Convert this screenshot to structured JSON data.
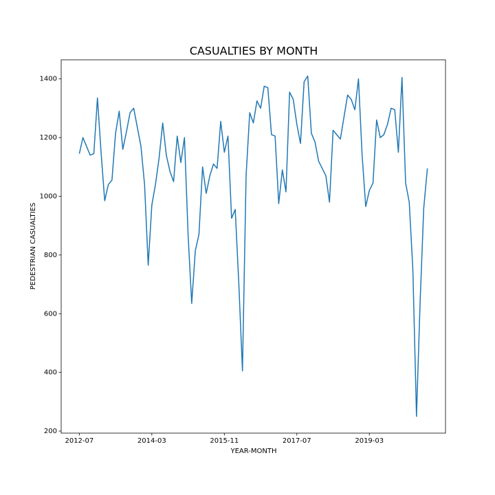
{
  "chart_data": {
    "type": "line",
    "title": "CASUALTIES BY MONTH",
    "x_label": "YEAR-MONTH",
    "y_label": "PEDESTRIAN CASUALTIES",
    "x": [
      "2012-07",
      "2012-08",
      "2012-09",
      "2012-10",
      "2012-11",
      "2012-12",
      "2013-01",
      "2013-02",
      "2013-03",
      "2013-04",
      "2013-05",
      "2013-06",
      "2013-07",
      "2013-08",
      "2013-09",
      "2013-10",
      "2013-11",
      "2013-12",
      "2014-01",
      "2014-02",
      "2014-03",
      "2014-04",
      "2014-05",
      "2014-06",
      "2014-07",
      "2014-08",
      "2014-09",
      "2014-10",
      "2014-11",
      "2014-12",
      "2015-01",
      "2015-02",
      "2015-03",
      "2015-04",
      "2015-05",
      "2015-06",
      "2015-07",
      "2015-08",
      "2015-09",
      "2015-10",
      "2015-11",
      "2015-12",
      "2016-01",
      "2016-02",
      "2016-03",
      "2016-04",
      "2016-05",
      "2016-06",
      "2016-07",
      "2016-08",
      "2016-09",
      "2016-10",
      "2016-11",
      "2016-12",
      "2017-01",
      "2017-02",
      "2017-03",
      "2017-04",
      "2017-05",
      "2017-06",
      "2017-07",
      "2017-08",
      "2017-09",
      "2017-10",
      "2017-11",
      "2017-12",
      "2018-01",
      "2018-02",
      "2018-03",
      "2018-04",
      "2018-05",
      "2018-06",
      "2018-07",
      "2018-08",
      "2018-09",
      "2018-10",
      "2018-11",
      "2018-12",
      "2019-01",
      "2019-02",
      "2019-03",
      "2019-04",
      "2019-05",
      "2019-06",
      "2019-07",
      "2019-08",
      "2019-09",
      "2019-10",
      "2019-11",
      "2019-12",
      "2020-01",
      "2020-02",
      "2020-03",
      "2020-04",
      "2020-05",
      "2020-06",
      "2020-07"
    ],
    "series": [
      {
        "name": "PEDESTRIAN CASUALTIES",
        "color": "#1f77b4",
        "values": [
          1145,
          1200,
          1170,
          1140,
          1145,
          1335,
          1150,
          985,
          1040,
          1055,
          1215,
          1290,
          1160,
          1220,
          1285,
          1300,
          1235,
          1170,
          1040,
          765,
          970,
          1040,
          1130,
          1250,
          1140,
          1085,
          1050,
          1205,
          1115,
          1200,
          870,
          635,
          815,
          870,
          1100,
          1010,
          1070,
          1110,
          1095,
          1255,
          1150,
          1205,
          925,
          955,
          700,
          405,
          1070,
          1285,
          1250,
          1325,
          1300,
          1375,
          1370,
          1210,
          1205,
          975,
          1090,
          1015,
          1355,
          1330,
          1245,
          1180,
          1390,
          1410,
          1215,
          1185,
          1120,
          1095,
          1070,
          980,
          1225,
          1210,
          1195,
          1270,
          1345,
          1330,
          1295,
          1400,
          1140,
          965,
          1020,
          1045,
          1260,
          1200,
          1210,
          1245,
          1300,
          1295,
          1150,
          1405,
          1045,
          980,
          750,
          250,
          640,
          960,
          1095
        ]
      }
    ],
    "xlim": [
      "2012-02",
      "2020-12"
    ],
    "xticks": [
      "2012-07",
      "2014-03",
      "2015-11",
      "2017-07",
      "2019-03"
    ],
    "ylim": [
      193,
      1465
    ],
    "yticks": [
      200,
      400,
      600,
      800,
      1000,
      1200,
      1400
    ],
    "grid": false
  }
}
